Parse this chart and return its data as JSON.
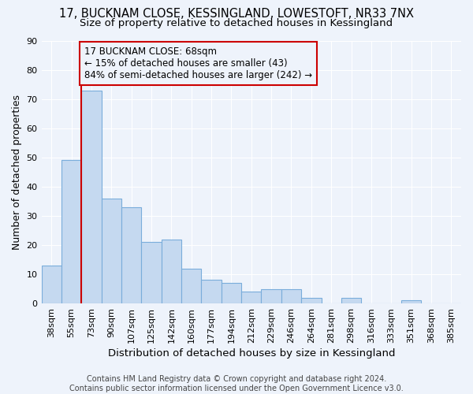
{
  "title1": "17, BUCKNAM CLOSE, KESSINGLAND, LOWESTOFT, NR33 7NX",
  "title2": "Size of property relative to detached houses in Kessingland",
  "xlabel": "Distribution of detached houses by size in Kessingland",
  "ylabel": "Number of detached properties",
  "categories": [
    "38sqm",
    "55sqm",
    "73sqm",
    "90sqm",
    "107sqm",
    "125sqm",
    "142sqm",
    "160sqm",
    "177sqm",
    "194sqm",
    "212sqm",
    "229sqm",
    "246sqm",
    "264sqm",
    "281sqm",
    "298sqm",
    "316sqm",
    "333sqm",
    "351sqm",
    "368sqm",
    "385sqm"
  ],
  "values": [
    13,
    49,
    73,
    36,
    33,
    21,
    22,
    12,
    8,
    7,
    4,
    5,
    5,
    2,
    0,
    2,
    0,
    0,
    1,
    0,
    0
  ],
  "bar_color": "#c5d9f0",
  "bar_edgecolor": "#7aaddb",
  "property_line_index": 2,
  "property_line_color": "#cc0000",
  "annotation_line1": "17 BUCKNAM CLOSE: 68sqm",
  "annotation_line2": "← 15% of detached houses are smaller (43)",
  "annotation_line3": "84% of semi-detached houses are larger (242) →",
  "annotation_box_color": "#cc0000",
  "ylim": [
    0,
    90
  ],
  "yticks": [
    0,
    10,
    20,
    30,
    40,
    50,
    60,
    70,
    80,
    90
  ],
  "footnote": "Contains HM Land Registry data © Crown copyright and database right 2024.\nContains public sector information licensed under the Open Government Licence v3.0.",
  "bg_color": "#eef3fb",
  "grid_color": "#ffffff",
  "title_fontsize": 10.5,
  "subtitle_fontsize": 9.5,
  "tick_fontsize": 8,
  "ylabel_fontsize": 9,
  "xlabel_fontsize": 9.5,
  "annotation_fontsize": 8.5,
  "footnote_fontsize": 7
}
